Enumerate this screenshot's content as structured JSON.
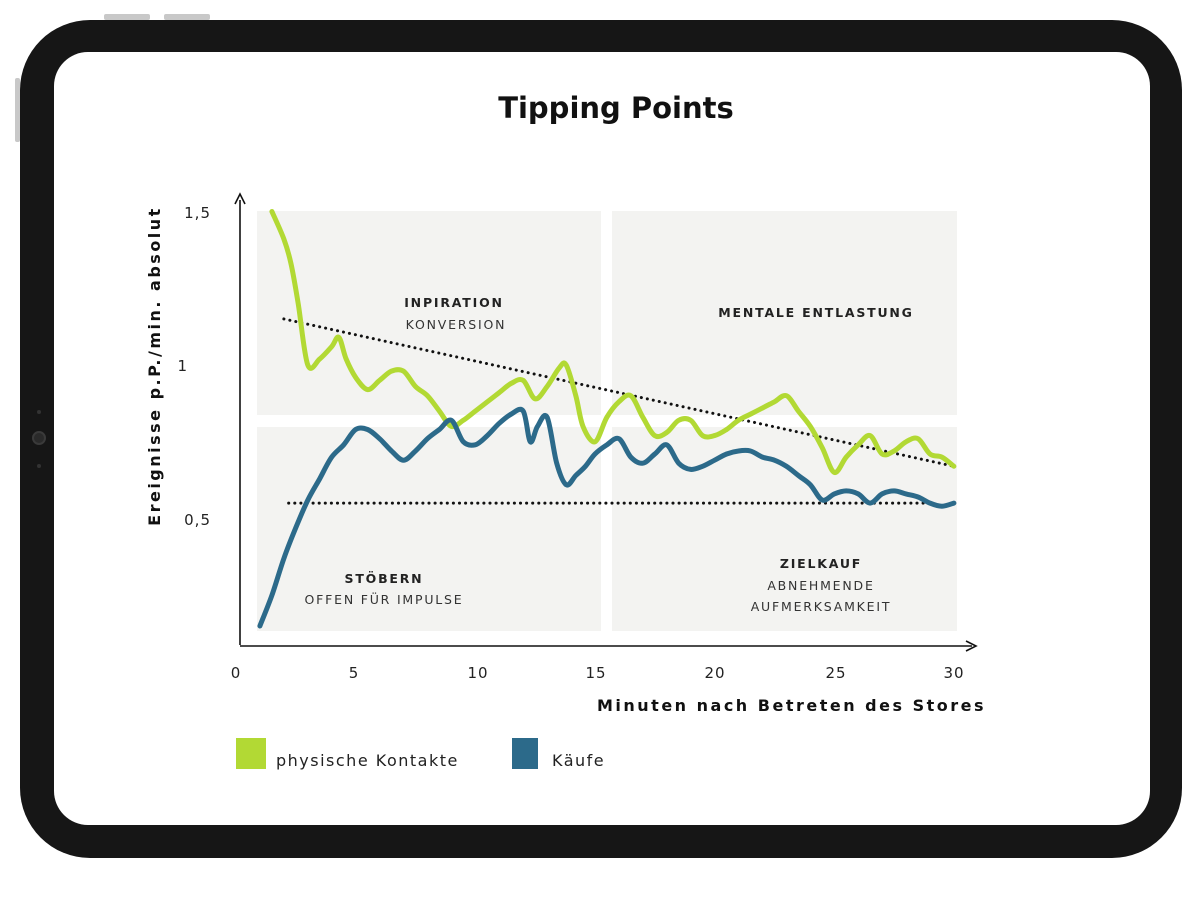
{
  "colors": {
    "green": "#b2d934",
    "blue": "#2c6a8a",
    "zone": "#f3f3f1",
    "frame": "#161616"
  },
  "chart_data": {
    "type": "line",
    "title": "Tipping Points",
    "xlabel": "Minuten nach Betreten des Stores",
    "ylabel": "Ereignisse p.P./min. absolut",
    "xlim": [
      0,
      30
    ],
    "ylim": [
      0.5,
      1.5
    ],
    "x_ticks": [
      "0",
      "5",
      "10",
      "15",
      "20",
      "25",
      "30"
    ],
    "y_ticks": [
      "0,5",
      "1",
      "1,5"
    ],
    "zones": [
      {
        "bold": "INPIRATION",
        "sub": [
          "KONVERSION"
        ]
      },
      {
        "bold": "MENTALE ENTLASTUNG",
        "sub": []
      },
      {
        "bold": "STÖBERN",
        "sub": [
          "OFFEN FÜR IMPULSE"
        ]
      },
      {
        "bold": "ZIELKAUF",
        "sub": [
          "ABNEHMENDE",
          "AUFMERKSAMKEIT"
        ]
      }
    ],
    "series": [
      {
        "name": "physische Kontakte",
        "color": "#b2d934",
        "x": [
          1.5,
          2,
          2.3,
          2.6,
          3,
          3.5,
          4,
          4.3,
          4.6,
          5,
          5.5,
          6,
          6.5,
          7,
          7.5,
          8,
          8.5,
          9,
          9.5,
          10,
          10.5,
          11,
          11.5,
          12,
          12.5,
          13,
          13.5,
          13.8,
          14.2,
          14.5,
          15,
          15.5,
          16,
          16.5,
          17,
          17.5,
          18,
          18.5,
          19,
          19.5,
          20,
          20.5,
          21,
          21.5,
          22,
          22.5,
          23,
          23.5,
          24,
          24.5,
          25,
          25.5,
          26,
          26.5,
          27,
          27.5,
          28,
          28.5,
          29,
          29.5,
          30
        ],
        "y": [
          1.5,
          1.41,
          1.33,
          1.2,
          1.0,
          1.02,
          1.06,
          1.09,
          1.02,
          0.96,
          0.92,
          0.95,
          0.98,
          0.98,
          0.93,
          0.9,
          0.85,
          0.8,
          0.82,
          0.85,
          0.88,
          0.91,
          0.94,
          0.95,
          0.89,
          0.93,
          0.99,
          1.0,
          0.9,
          0.8,
          0.75,
          0.83,
          0.88,
          0.9,
          0.83,
          0.77,
          0.78,
          0.82,
          0.82,
          0.77,
          0.77,
          0.79,
          0.82,
          0.84,
          0.86,
          0.88,
          0.9,
          0.85,
          0.8,
          0.73,
          0.65,
          0.7,
          0.74,
          0.77,
          0.71,
          0.72,
          0.75,
          0.76,
          0.71,
          0.7,
          0.67
        ]
      },
      {
        "name": "Käufe",
        "color": "#2c6a8a",
        "x": [
          1,
          1.5,
          2,
          2.5,
          3,
          3.5,
          4,
          4.5,
          5,
          5.5,
          6,
          6.5,
          7,
          7.5,
          8,
          8.5,
          9,
          9.5,
          10,
          10.5,
          11,
          11.5,
          12,
          12.3,
          12.6,
          13,
          13.4,
          13.8,
          14.2,
          14.6,
          15,
          15.5,
          16,
          16.5,
          17,
          17.5,
          18,
          18.5,
          19,
          19.5,
          20,
          20.5,
          21,
          21.5,
          22,
          22.5,
          23,
          23.5,
          24,
          24.5,
          25,
          25.5,
          26,
          26.5,
          27,
          27.5,
          28,
          28.5,
          29,
          29.5,
          30
        ],
        "y": [
          0.15,
          0.25,
          0.37,
          0.47,
          0.56,
          0.63,
          0.7,
          0.74,
          0.79,
          0.79,
          0.76,
          0.72,
          0.69,
          0.72,
          0.76,
          0.79,
          0.82,
          0.75,
          0.74,
          0.77,
          0.81,
          0.84,
          0.85,
          0.75,
          0.8,
          0.83,
          0.68,
          0.61,
          0.64,
          0.67,
          0.71,
          0.74,
          0.76,
          0.7,
          0.68,
          0.71,
          0.74,
          0.68,
          0.66,
          0.67,
          0.69,
          0.71,
          0.72,
          0.72,
          0.7,
          0.69,
          0.67,
          0.64,
          0.61,
          0.56,
          0.58,
          0.59,
          0.58,
          0.55,
          0.58,
          0.59,
          0.58,
          0.57,
          0.55,
          0.54,
          0.55
        ]
      }
    ],
    "trendlines": [
      {
        "series": "physische Kontakte",
        "x": [
          2,
          30
        ],
        "y": [
          1.15,
          0.67
        ]
      },
      {
        "series": "Käufe",
        "x": [
          2.2,
          29
        ],
        "y": [
          0.55,
          0.55
        ]
      }
    ],
    "legend": {
      "position": "bottom-left",
      "items": [
        "physische Kontakte",
        "Käufe"
      ]
    }
  }
}
